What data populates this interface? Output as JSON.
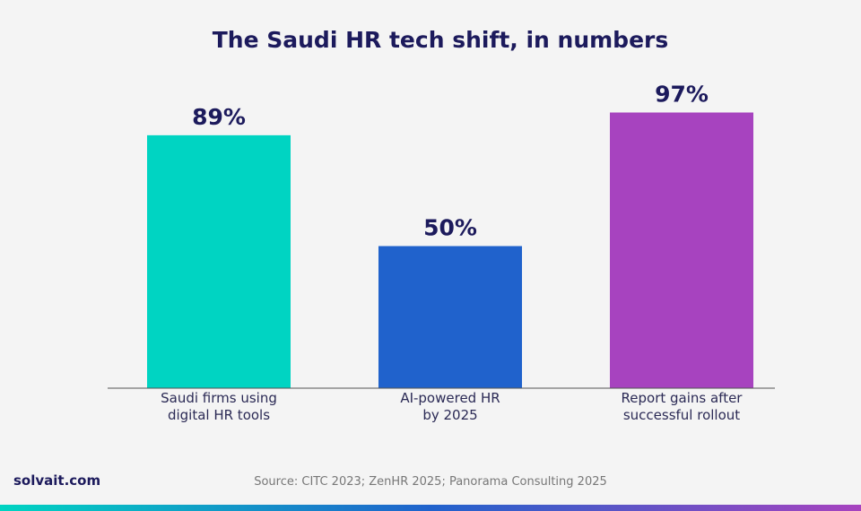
{
  "title": "The Saudi HR tech shift, in numbers",
  "brand": "solvait.com",
  "source": "Source: CITC 2023; ZenHR 2025; Panorama Consulting 2025",
  "colors": {
    "background": "#f4f4f4",
    "title": "#1c1a5c",
    "axis": "#555555",
    "gradient": [
      "#00d4c2",
      "#2062cc",
      "#a743bf"
    ]
  },
  "chart_data": {
    "type": "bar",
    "title": "The Saudi HR tech shift, in numbers",
    "categories": [
      [
        "Saudi firms using",
        "digital HR tools"
      ],
      [
        "AI-powered HR",
        "by 2025"
      ],
      [
        "Report gains after",
        "successful rollout"
      ]
    ],
    "values": [
      89,
      50,
      97
    ],
    "value_labels": [
      "89%",
      "50%",
      "97%"
    ],
    "bar_colors": [
      "#00d4c2",
      "#2062cc",
      "#a743bf"
    ],
    "unit": "%",
    "ylim": [
      0,
      100
    ],
    "grid": false,
    "legend": "none"
  }
}
